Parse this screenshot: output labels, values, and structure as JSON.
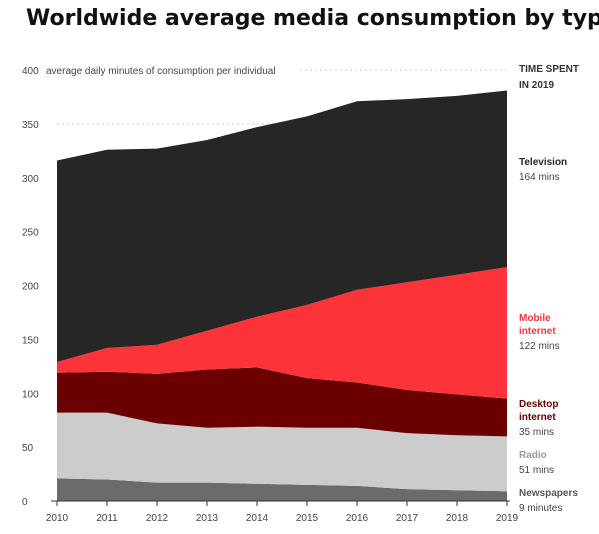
{
  "chart_data": {
    "type": "area",
    "stacked": true,
    "title": "Worldwide average media consumption by type",
    "ylabel": "average daily minutes of consumption per individual",
    "ylim": [
      0,
      400
    ],
    "yticks": [
      0,
      50,
      100,
      150,
      200,
      250,
      300,
      350,
      400
    ],
    "x": [
      2010,
      2011,
      2012,
      2013,
      2014,
      2015,
      2016,
      2017,
      2018,
      2019
    ],
    "grid": true,
    "legend_header": [
      "TIME SPENT",
      "IN 2019"
    ],
    "series": [
      {
        "name": "Newspapers",
        "color": "#6b6b6b",
        "values": [
          21,
          20,
          17,
          17,
          16,
          15,
          14,
          11,
          10,
          9
        ],
        "label": "Newspapers",
        "value_label": "9 minutes"
      },
      {
        "name": "Radio",
        "color": "#cccccc",
        "values": [
          61,
          62,
          55,
          51,
          53,
          53,
          54,
          52,
          51,
          51
        ],
        "label": "Radio",
        "value_label": "51 mins"
      },
      {
        "name": "Desktop internet",
        "color": "#6b0000",
        "values": [
          37,
          38,
          46,
          54,
          55,
          46,
          42,
          40,
          38,
          35
        ],
        "label": "Desktop\ninternet",
        "value_label": "35 mins"
      },
      {
        "name": "Mobile internet",
        "color": "#fc343a",
        "values": [
          10,
          22,
          27,
          36,
          47,
          68,
          86,
          100,
          111,
          122
        ],
        "label": "Mobile\ninternet",
        "value_label": "122 mins"
      },
      {
        "name": "Television",
        "color": "#262626",
        "values": [
          187,
          184,
          182,
          177,
          176,
          175,
          175,
          170,
          166,
          164
        ],
        "label": "Television",
        "value_label": "164 mins"
      }
    ]
  }
}
